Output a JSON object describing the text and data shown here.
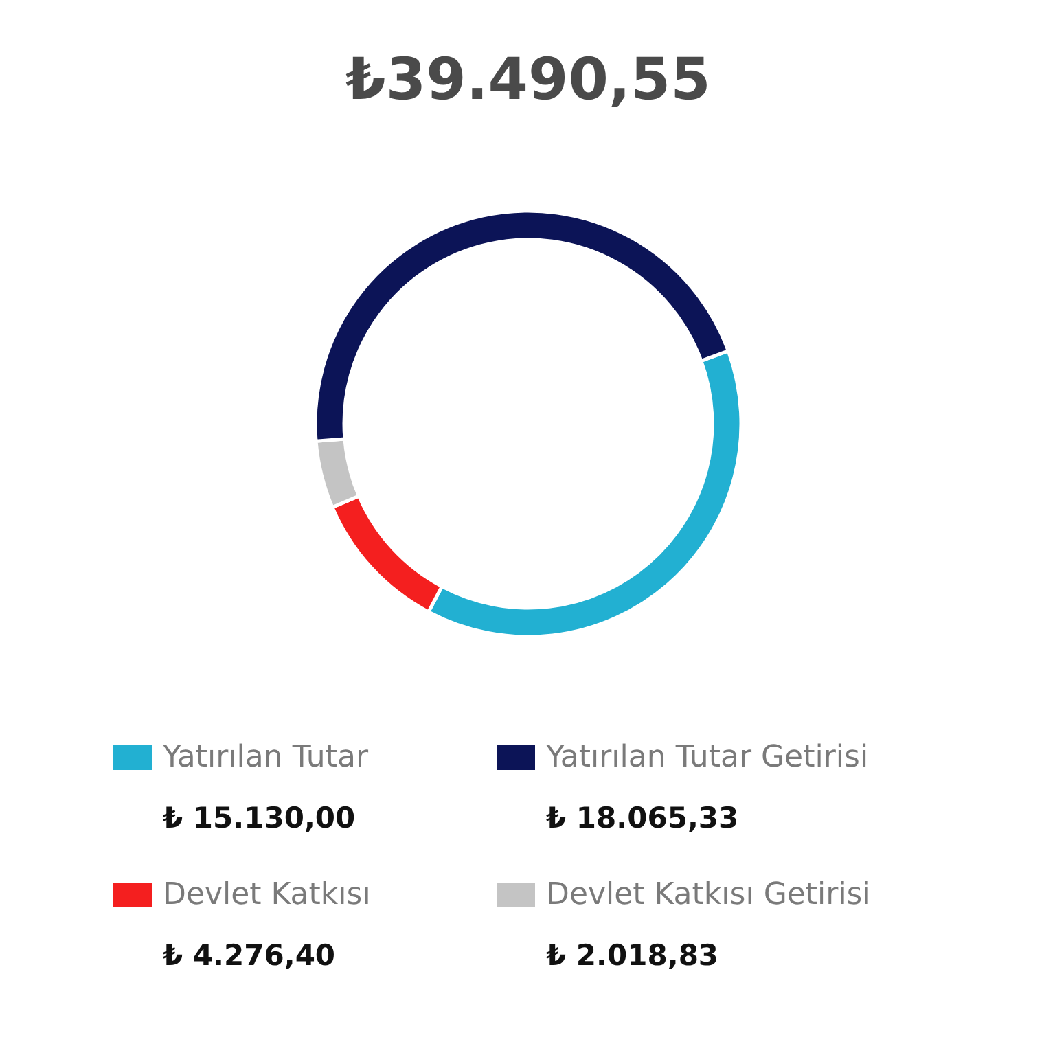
{
  "chart_data": {
    "type": "donut",
    "title": "₺39.490,55",
    "categories": [
      "Yatırılan Tutar",
      "Yatırılan Tutar Getirisi",
      "Devlet Katkısı",
      "Devlet Katkısı Getirisi"
    ],
    "values": [
      15130.0,
      18065.33,
      4276.4,
      2018.83
    ],
    "value_labels": [
      "₺ 15.130,00",
      "₺ 18.065,33",
      "₺ 4.276,40",
      "₺ 2.018,83"
    ],
    "colors": [
      "#22b0d2",
      "#0c1457",
      "#f41f1f",
      "#c4c4c4"
    ],
    "legend": "bottom"
  }
}
